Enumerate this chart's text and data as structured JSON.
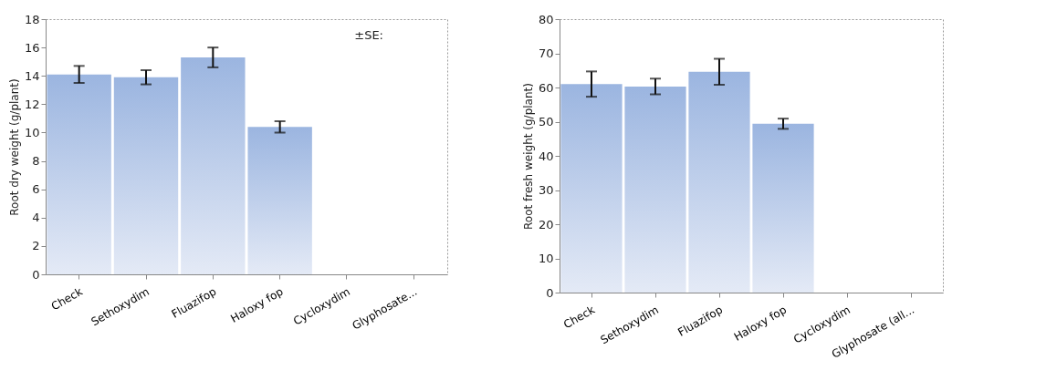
{
  "chart_data": [
    {
      "type": "bar",
      "categories": [
        "Check",
        "Sethoxydim",
        "Fluazifop",
        "Haloxy fop",
        "Cycloxydim",
        "Glyphosate..."
      ],
      "ylabel": "Root dry weight (g/plant)",
      "values": [
        14.1,
        13.9,
        15.3,
        10.4,
        null,
        null
      ],
      "errors": [
        0.6,
        0.5,
        0.7,
        0.4,
        null,
        null
      ],
      "color": "#9bb5e0",
      "ylim": [
        0,
        18
      ],
      "yticks": [
        0,
        2,
        4,
        6,
        8,
        10,
        12,
        14,
        16,
        18
      ],
      "grid": false,
      "annotations": [
        "±SE:"
      ]
    },
    {
      "type": "bar",
      "categories": [
        "Check",
        "Sethoxydim",
        "Fluazifop",
        "Haloxy fop",
        "Cycloxydim",
        "Glyphosate (all..."
      ],
      "ylabel": "Root fresh weight (g/plant)",
      "values": [
        61,
        60.3,
        64.6,
        49.4,
        null,
        null
      ],
      "errors": [
        3.7,
        2.3,
        3.8,
        1.5,
        null,
        null
      ],
      "color": "#9bb5e0",
      "ylim": [
        0,
        80
      ],
      "yticks": [
        0,
        10,
        20,
        30,
        40,
        50,
        60,
        70,
        80
      ],
      "grid": false
    }
  ]
}
